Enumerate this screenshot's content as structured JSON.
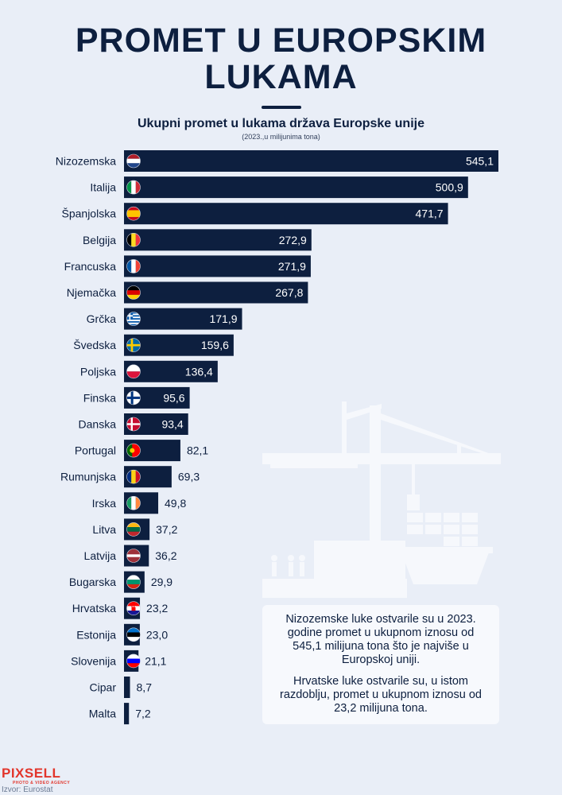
{
  "header": {
    "title_line1": "PROMET U EUROPSKIM",
    "title_line2": "LUKAMA",
    "subtitle": "Ukupni promet u lukama država Europske unije",
    "unit_note": "(2023.,u milijunima tona)"
  },
  "chart_data": {
    "type": "bar",
    "orientation": "horizontal",
    "title": "Ukupni promet u lukama država Europske unije",
    "categories": [
      "Nizozemska",
      "Italija",
      "Španjolska",
      "Belgija",
      "Francuska",
      "Njemačka",
      "Grčka",
      "Švedska",
      "Poljska",
      "Finska",
      "Danska",
      "Portugal",
      "Rumunjska",
      "Irska",
      "Litva",
      "Latvija",
      "Bugarska",
      "Hrvatska",
      "Estonija",
      "Slovenija",
      "Cipar",
      "Malta"
    ],
    "values": [
      545.1,
      500.9,
      471.7,
      272.9,
      271.9,
      267.8,
      171.9,
      159.6,
      136.4,
      95.6,
      93.4,
      82.1,
      69.3,
      49.8,
      37.2,
      36.2,
      29.9,
      23.2,
      23.0,
      21.1,
      8.7,
      7.2
    ],
    "value_labels": [
      "545,1",
      "500,9",
      "471,7",
      "272,9",
      "271,9",
      "267,8",
      "171,9",
      "159,6",
      "136,4",
      "95,6",
      "93,4",
      "82,1",
      "69,3",
      "49,8",
      "37,2",
      "36,2",
      "29,9",
      "23,2",
      "23,0",
      "21,1",
      "8,7",
      "7,2"
    ],
    "flags": [
      "nl",
      "it",
      "es",
      "be",
      "fr",
      "de",
      "gr",
      "se",
      "pl",
      "fi",
      "dk",
      "pt",
      "ro",
      "ie",
      "lt",
      "lv",
      "bg",
      "hr",
      "ee",
      "si",
      "",
      ""
    ],
    "bar_color": "#0d1f3f",
    "grid": false,
    "legend": "none"
  },
  "note": {
    "paragraph1": "Nizozemske luke ostvarile su u 2023. godine promet u ukupnom iznosu od 545,1 milijuna tona što je najviše u Europskoj uniji.",
    "paragraph2": "Hrvatske luke ostvarile su, u istom razdoblju, promet u ukupnom iznosu od 23,2 milijuna tona."
  },
  "footer": {
    "logo": "PIXSELL",
    "logo_sub": "PHOTO & VIDEO AGENCY",
    "source": "Izvor: Eurostat"
  },
  "colors": {
    "background": "#e9eef7",
    "navy": "#0d1f3f",
    "illustration": "#f6f8fc",
    "brand_red": "#e2352b"
  },
  "illustration": "port-crane-ship-icon"
}
